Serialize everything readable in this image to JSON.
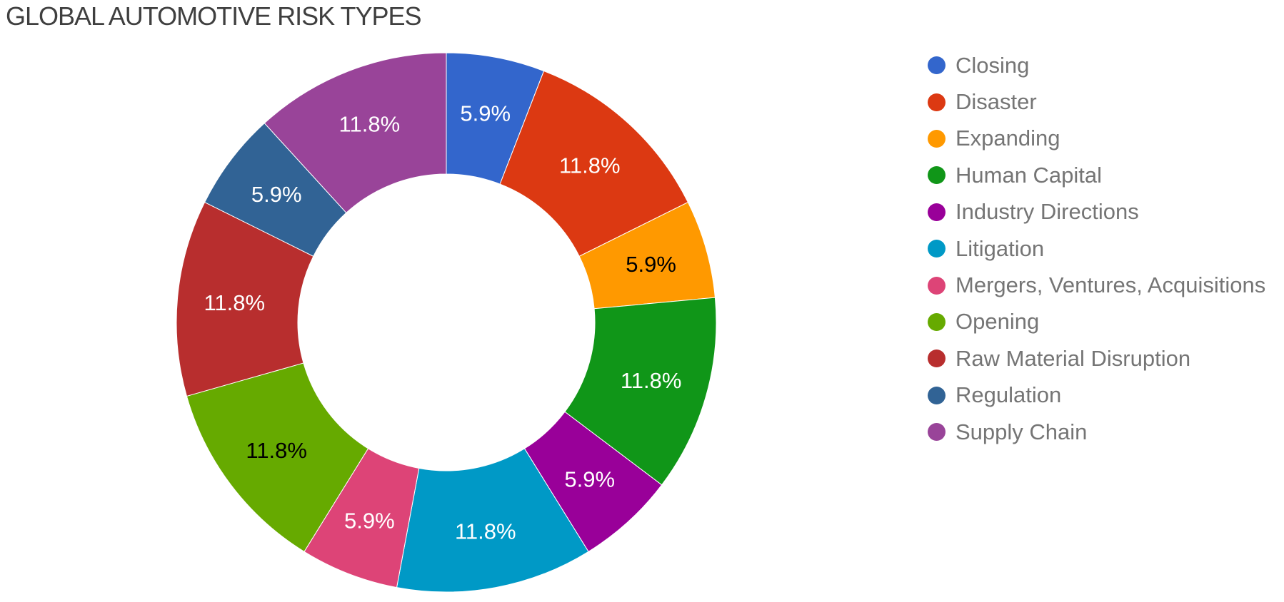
{
  "page": {
    "background_color": "#ffffff",
    "title_color": "#3f3f3f",
    "legend_text_color": "#757575"
  },
  "chart_data": {
    "type": "pie",
    "subtype": "donut",
    "title": "GLOBAL AUTOMOTIVE RISK TYPES",
    "legend_position": "right",
    "start_angle_deg": 0,
    "direction": "clockwise",
    "pie_hole_ratio": 0.55,
    "total_value": 17,
    "slices": [
      {
        "label": "Closing",
        "value": 1,
        "percent_value": 5.9,
        "percent": "5.9%",
        "color": "#3366CC",
        "label_color": "#ffffff"
      },
      {
        "label": "Disaster",
        "value": 2,
        "percent_value": 11.8,
        "percent": "11.8%",
        "color": "#DC3912",
        "label_color": "#ffffff"
      },
      {
        "label": "Expanding",
        "value": 1,
        "percent_value": 5.9,
        "percent": "5.9%",
        "color": "#FF9900",
        "label_color": "#000000"
      },
      {
        "label": "Human Capital",
        "value": 2,
        "percent_value": 11.8,
        "percent": "11.8%",
        "color": "#109618",
        "label_color": "#ffffff"
      },
      {
        "label": "Industry Directions",
        "value": 1,
        "percent_value": 5.9,
        "percent": "5.9%",
        "color": "#990099",
        "label_color": "#ffffff"
      },
      {
        "label": "Litigation",
        "value": 2,
        "percent_value": 11.8,
        "percent": "11.8%",
        "color": "#0099C6",
        "label_color": "#ffffff"
      },
      {
        "label": "Mergers, Ventures, Acquisitions",
        "value": 1,
        "percent_value": 5.9,
        "percent": "5.9%",
        "color": "#DD4477",
        "label_color": "#ffffff"
      },
      {
        "label": "Opening",
        "value": 2,
        "percent_value": 11.8,
        "percent": "11.8%",
        "color": "#66AA00",
        "label_color": "#000000"
      },
      {
        "label": "Raw Material Disruption",
        "value": 2,
        "percent_value": 11.8,
        "percent": "11.8%",
        "color": "#B82E2E",
        "label_color": "#ffffff"
      },
      {
        "label": "Regulation",
        "value": 1,
        "percent_value": 5.9,
        "percent": "5.9%",
        "color": "#316395",
        "label_color": "#ffffff"
      },
      {
        "label": "Supply Chain",
        "value": 2,
        "percent_value": 11.8,
        "percent": "11.8%",
        "color": "#994499",
        "label_color": "#ffffff"
      }
    ]
  }
}
